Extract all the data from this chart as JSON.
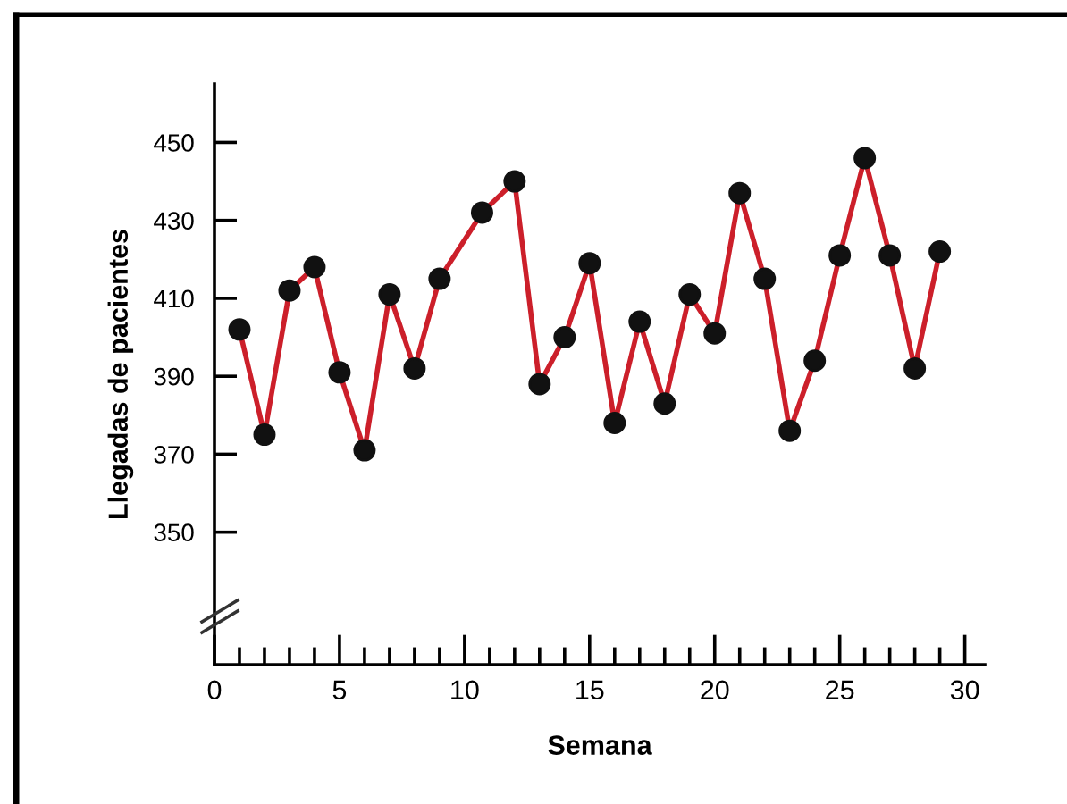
{
  "chart_data": {
    "type": "line",
    "xlabel": "Semana",
    "ylabel": "Llegadas de pacientes",
    "series": [
      {
        "color": "#cc1f2a",
        "colors": [
          "#111111",
          "#111111",
          "#111111",
          "#111111",
          "#111111",
          "#111111",
          "#111111",
          "#111111",
          "#111111",
          "#111111",
          "#111111",
          "#111111",
          "#111111",
          "#111111",
          "#111111",
          "#111111",
          "#111111",
          "#111111",
          "#111111",
          "#111111",
          "#111111",
          "#111111",
          "#111111",
          "#111111",
          "#111111",
          "#111111",
          "#111111",
          "#111111"
        ],
        "x": [
          1,
          2,
          3,
          4,
          5,
          6,
          7,
          8,
          9,
          10.7,
          12,
          13,
          14,
          15,
          16,
          17,
          18,
          19,
          20,
          21,
          22,
          23,
          24,
          25,
          26,
          27,
          28,
          29
        ],
        "values": [
          402,
          375,
          412,
          418,
          391,
          371,
          411,
          392,
          415,
          432,
          440,
          388,
          400,
          419,
          378,
          404,
          383,
          411,
          401,
          437,
          415,
          376,
          394,
          421,
          446,
          421,
          392,
          422
        ]
      }
    ],
    "xlim": [
      0,
      30.8
    ],
    "ylim": [
      316,
      465
    ],
    "xticks": [
      0,
      {
        "value": 1,
        "label": null
      },
      {
        "value": 2,
        "label": null
      },
      {
        "value": 3,
        "label": null
      },
      {
        "value": 4,
        "label": null
      },
      5,
      {
        "value": 6,
        "label": null
      },
      {
        "value": 7,
        "label": null
      },
      {
        "value": 8,
        "label": null
      },
      {
        "value": 9,
        "label": null
      },
      10,
      {
        "value": 11,
        "label": null
      },
      {
        "value": 12,
        "label": null
      },
      {
        "value": 13,
        "label": null
      },
      {
        "value": 14,
        "label": null
      },
      15,
      {
        "value": 16,
        "label": null
      },
      {
        "value": 17,
        "label": null
      },
      {
        "value": 18,
        "label": null
      },
      {
        "value": 19,
        "label": null
      },
      20,
      {
        "value": 21,
        "label": null
      },
      {
        "value": 22,
        "label": null
      },
      {
        "value": 23,
        "label": null
      },
      {
        "value": 24,
        "label": null
      },
      25,
      {
        "value": 26,
        "label": null
      },
      {
        "value": 27,
        "label": null
      },
      {
        "value": 28,
        "label": null
      },
      {
        "value": 29,
        "label": null
      },
      30
    ],
    "yticks": [
      350,
      370,
      390,
      410,
      430,
      450
    ],
    "marker": "circle",
    "line_style": "solid",
    "grid": false,
    "legend": false
  }
}
